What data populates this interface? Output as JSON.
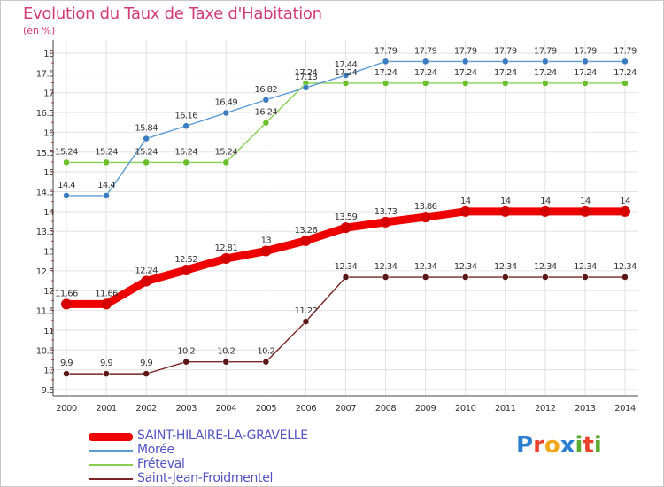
{
  "title": "Evolution du Taux de Taxe d'Habitation",
  "subtitle": "(en %)",
  "logo": {
    "text": "Proxiti",
    "letters": [
      "P",
      "r",
      "o",
      "x",
      "i",
      "t",
      "i"
    ],
    "colors": [
      "#2a7fd0",
      "#e8432a",
      "#f2a81d",
      "#2a7fd0",
      "#5aab2e",
      "#e8432a",
      "#5aab2e"
    ]
  },
  "chart_data": {
    "type": "line",
    "x": [
      2000,
      2001,
      2002,
      2003,
      2004,
      2005,
      2006,
      2007,
      2008,
      2009,
      2010,
      2011,
      2012,
      2013,
      2014
    ],
    "ylim": [
      9.5,
      18
    ],
    "yticks": [
      "9.5",
      "10",
      "10.5",
      "11",
      "11.5",
      "12",
      "12.5",
      "13",
      "13.5",
      "14",
      "14.5",
      "15",
      "15.5",
      "16",
      "16.5",
      "17",
      "17.5",
      "18"
    ],
    "grid": true,
    "legend_position": "bottom",
    "series": [
      {
        "name": "SAINT-HILAIRE-LA-GRAVELLE",
        "color": "#ee0000",
        "values": [
          11.66,
          11.66,
          12.24,
          12.52,
          12.81,
          13,
          13.26,
          13.59,
          13.73,
          13.86,
          14,
          14,
          14,
          14,
          14
        ],
        "labels": [
          "11.66",
          "11.66",
          "12.24",
          "12.52",
          "12.81",
          "13",
          "13.26",
          "13.59",
          "13.73",
          "13.86",
          "14",
          "14",
          "14",
          "14",
          "14"
        ]
      },
      {
        "name": "Morée",
        "color": "#5a9ad5",
        "values": [
          14.4,
          14.4,
          15.84,
          16.16,
          16.49,
          16.82,
          17.13,
          17.44,
          17.79,
          17.79,
          17.79,
          17.79,
          17.79,
          17.79,
          17.79
        ],
        "labels": [
          "14.4",
          "14.4",
          "15.84",
          "16.16",
          "16.49",
          "16.82",
          "17.13",
          "17.44",
          "17.79",
          "17.79",
          "17.79",
          "17.79",
          "17.79",
          "17.79",
          "17.79"
        ]
      },
      {
        "name": "Fréteval",
        "color": "#86d04e",
        "values": [
          15.24,
          15.24,
          15.24,
          15.24,
          15.24,
          16.24,
          17.24,
          17.24,
          17.24,
          17.24,
          17.24,
          17.24,
          17.24,
          17.24,
          17.24
        ],
        "labels": [
          "15.24",
          "15.24",
          "15.24",
          "15.24",
          "15.24",
          "16.24",
          "17.24",
          "17.24",
          "17.24",
          "17.24",
          "17.24",
          "17.24",
          "17.24",
          "17.24",
          "17.24"
        ]
      },
      {
        "name": "Saint-Jean-Froidmentel",
        "color": "#7a2424",
        "values": [
          9.9,
          9.9,
          9.9,
          10.2,
          10.2,
          10.2,
          11.22,
          12.34,
          12.34,
          12.34,
          12.34,
          12.34,
          12.34,
          12.34,
          12.34
        ],
        "labels": [
          "9.9",
          "9.9",
          "9.9",
          "10.2",
          "10.2",
          "10.2",
          "11.22",
          "12.34",
          "12.34",
          "12.34",
          "12.34",
          "12.34",
          "12.34",
          "12.34",
          "12.34"
        ]
      }
    ]
  }
}
